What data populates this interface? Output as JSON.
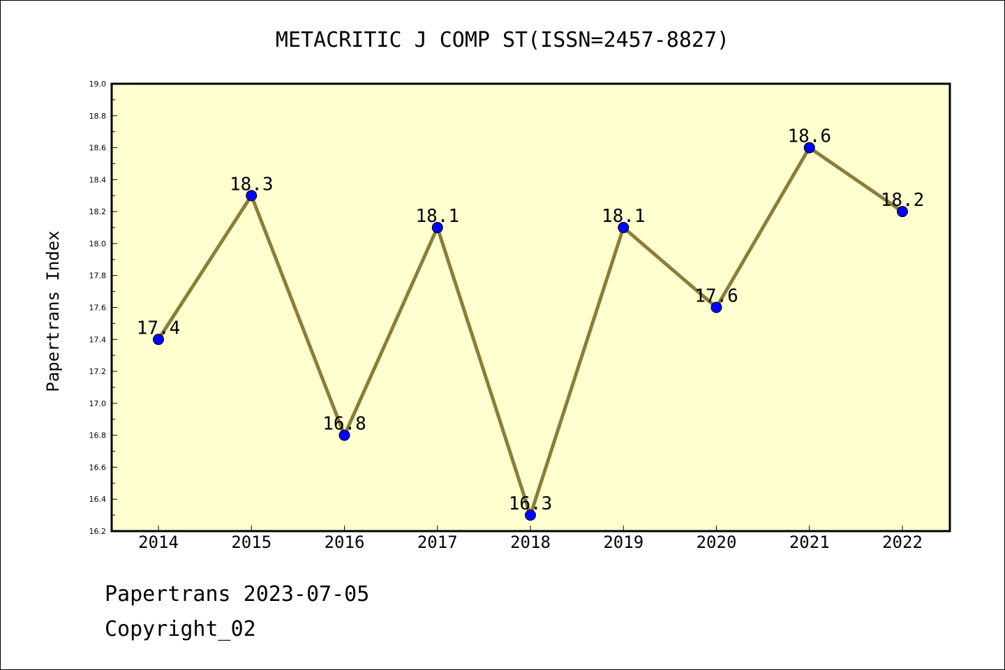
{
  "chart_data": {
    "type": "line",
    "title": "METACRITIC J COMP ST(ISSN=2457-8827)",
    "xlabel": "",
    "ylabel": "Papertrans Index",
    "categories": [
      "2014",
      "2015",
      "2016",
      "2017",
      "2018",
      "2019",
      "2020",
      "2021",
      "2022"
    ],
    "series": [
      {
        "values": [
          17.4,
          18.3,
          16.8,
          18.1,
          16.3,
          18.1,
          17.6,
          18.6,
          18.2
        ],
        "labels": [
          "17.4",
          "18.3",
          "16.8",
          "18.1",
          "16.3",
          "18.1",
          "17.6",
          "18.6",
          "18.2"
        ],
        "line_color": "#8b7d3a",
        "marker_color": "#0000ff"
      }
    ],
    "ylim": [
      16.2,
      19.0
    ],
    "yticks": [
      "16.2",
      "16.4",
      "16.6",
      "16.8",
      "17.0",
      "17.2",
      "17.4",
      "17.6",
      "17.8",
      "18.0",
      "18.2",
      "18.4",
      "18.6",
      "18.8",
      "19.0"
    ],
    "plot_background": "#ffffd0",
    "grid": false,
    "legend": "none"
  },
  "footer": {
    "line1": "Papertrans 2023-07-05",
    "line2": "Copyright_02"
  }
}
